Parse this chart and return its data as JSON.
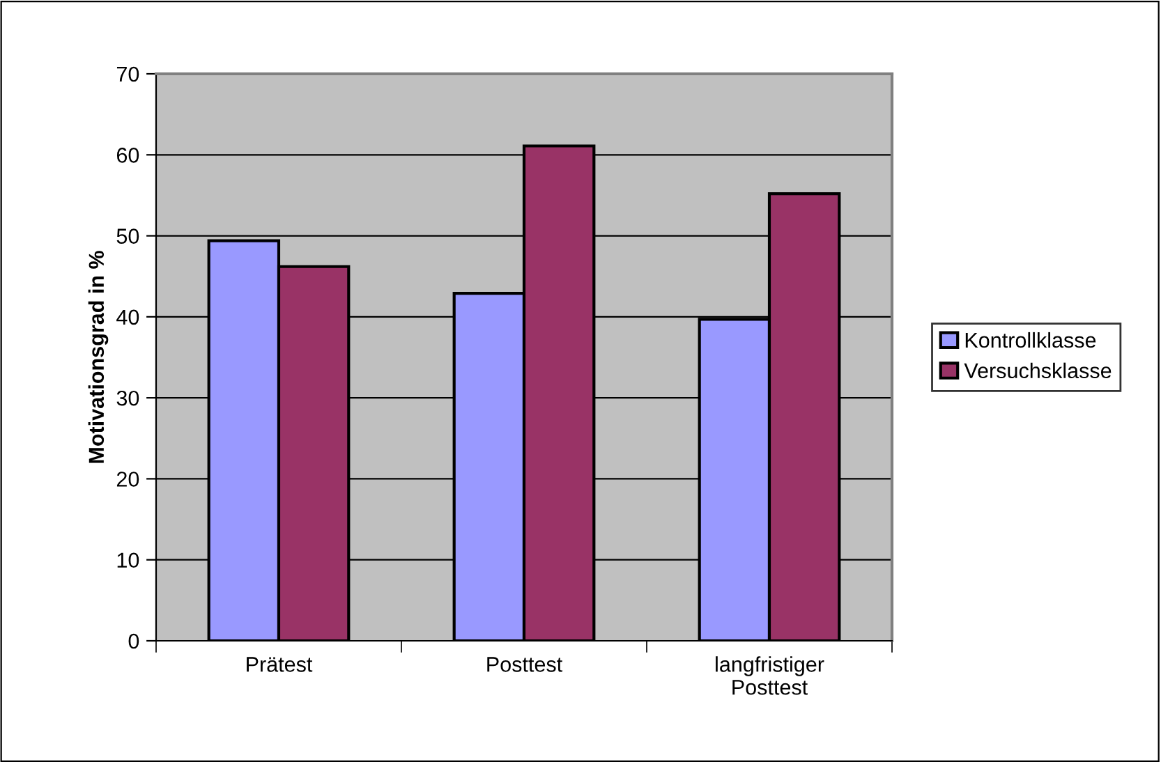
{
  "chart_data": {
    "type": "bar",
    "ylabel": "Motivationsgrad in %",
    "categories": [
      "Prätest",
      "Posttest",
      "langfristiger\nPosttest"
    ],
    "series": [
      {
        "name": "Kontrollklasse",
        "color": "#9999ff",
        "values": [
          49.4,
          42.9,
          39.7
        ]
      },
      {
        "name": "Versuchsklasse",
        "color": "#993366",
        "values": [
          46.2,
          61.1,
          55.2
        ]
      }
    ],
    "ylim": [
      0,
      70
    ],
    "yticks": [
      0,
      10,
      20,
      30,
      40,
      50,
      60,
      70
    ],
    "grid": "y",
    "legend": "right"
  }
}
